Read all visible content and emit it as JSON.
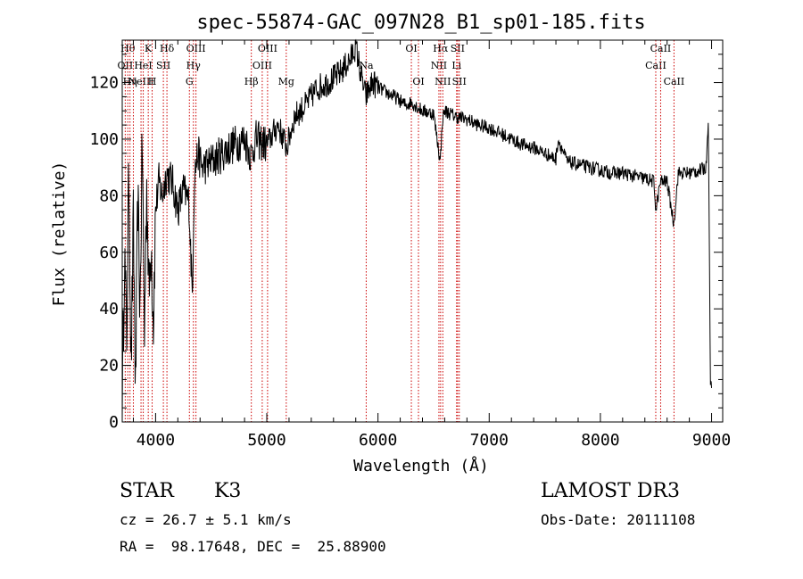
{
  "chart_data": {
    "type": "line",
    "title": "spec-55874-GAC_097N28_B1_sp01-185.fits",
    "xlabel": "Wavelength (Å)",
    "ylabel": "Flux (relative)",
    "xlim": [
      3700,
      9100
    ],
    "ylim": [
      0,
      135
    ],
    "xticks": [
      4000,
      5000,
      6000,
      7000,
      8000,
      9000
    ],
    "yticks": [
      0,
      20,
      40,
      60,
      80,
      100,
      120
    ],
    "grid": false,
    "series": [
      {
        "name": "spectrum",
        "x": [
          3700,
          3720,
          3740,
          3760,
          3780,
          3800,
          3820,
          3840,
          3860,
          3880,
          3900,
          3920,
          3940,
          3960,
          3980,
          4000,
          4030,
          4060,
          4100,
          4150,
          4200,
          4250,
          4300,
          4330,
          4350,
          4380,
          4420,
          4500,
          4600,
          4700,
          4800,
          4860,
          4900,
          5000,
          5100,
          5180,
          5250,
          5350,
          5450,
          5550,
          5650,
          5750,
          5800,
          5850,
          5890,
          5950,
          6050,
          6150,
          6250,
          6300,
          6400,
          6500,
          6560,
          6580,
          6600,
          6700,
          6800,
          6900,
          7000,
          7100,
          7200,
          7300,
          7400,
          7500,
          7600,
          7620,
          7700,
          7800,
          7900,
          8000,
          8100,
          8200,
          8300,
          8400,
          8480,
          8500,
          8540,
          8600,
          8660,
          8700,
          8800,
          8900,
          8950,
          8970,
          8990,
          9000
        ],
        "y": [
          5,
          60,
          30,
          90,
          20,
          70,
          10,
          80,
          40,
          100,
          30,
          85,
          45,
          65,
          35,
          75,
          85,
          80,
          88,
          85,
          75,
          82,
          78,
          45,
          88,
          95,
          90,
          92,
          95,
          98,
          100,
          94,
          100,
          98,
          105,
          97,
          108,
          112,
          118,
          120,
          123,
          128,
          133,
          122,
          115,
          120,
          117,
          115,
          112,
          113,
          110,
          109,
          92,
          107,
          110,
          108,
          107,
          105,
          104,
          102,
          100,
          98,
          97,
          95,
          93,
          100,
          92,
          91,
          90,
          89,
          88,
          88,
          87,
          86,
          85,
          75,
          85,
          85,
          70,
          88,
          88,
          89,
          90,
          108,
          15,
          12
        ]
      }
    ],
    "line_markers": [
      {
        "x": 3727,
        "label": "OII",
        "row": 1
      },
      {
        "x": 3750,
        "label": "Hθ",
        "row": 0
      },
      {
        "x": 3770,
        "label": "Hη",
        "row": 2
      },
      {
        "x": 3800,
        "label": "",
        "row": -1
      },
      {
        "x": 3869,
        "label": "NeIII",
        "row": 2
      },
      {
        "x": 3889,
        "label": "HeI",
        "row": 1
      },
      {
        "x": 3934,
        "label": "K",
        "row": 0
      },
      {
        "x": 3969,
        "label": "H",
        "row": 2
      },
      {
        "x": 4070,
        "label": "SII",
        "row": 1
      },
      {
        "x": 4102,
        "label": "Hδ",
        "row": 0
      },
      {
        "x": 4304,
        "label": "G",
        "row": 2
      },
      {
        "x": 4340,
        "label": "Hγ",
        "row": 1
      },
      {
        "x": 4363,
        "label": "OIII",
        "row": 0
      },
      {
        "x": 4861,
        "label": "Hβ",
        "row": 2
      },
      {
        "x": 4959,
        "label": "OIII",
        "row": 1
      },
      {
        "x": 5007,
        "label": "OIII",
        "row": 0
      },
      {
        "x": 5175,
        "label": "Mg",
        "row": 2
      },
      {
        "x": 5894,
        "label": "Na",
        "row": 1
      },
      {
        "x": 6300,
        "label": "OI",
        "row": 0
      },
      {
        "x": 6364,
        "label": "OI",
        "row": 2
      },
      {
        "x": 6548,
        "label": "NII",
        "row": 1
      },
      {
        "x": 6563,
        "label": "Hα",
        "row": 0
      },
      {
        "x": 6583,
        "label": "NII",
        "row": 2
      },
      {
        "x": 6707,
        "label": "Li",
        "row": 1
      },
      {
        "x": 6716,
        "label": "SII",
        "row": 0
      },
      {
        "x": 6731,
        "label": "SII",
        "row": 2
      },
      {
        "x": 8498,
        "label": "CaII",
        "row": 1
      },
      {
        "x": 8542,
        "label": "CaII",
        "row": 0
      },
      {
        "x": 8662,
        "label": "CaII",
        "row": 2
      }
    ],
    "line_color": "#000000",
    "marker_color": "#cc0000"
  },
  "info": {
    "object_class": "STAR",
    "subclass": "K3",
    "survey": "LAMOST DR3",
    "redshift": "cz = 26.7 ± 5.1 km/s",
    "obs_date": "Obs-Date: 20111108",
    "coords": "RA =  98.17648, DEC =  25.88900"
  }
}
